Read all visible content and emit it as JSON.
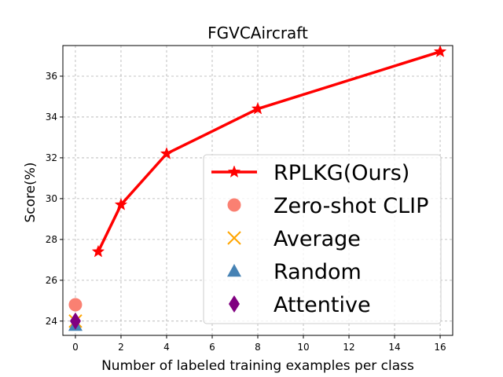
{
  "chart_data": {
    "type": "line",
    "title": "FGVCAircraft",
    "xlabel": "Number of labeled training examples per class",
    "ylabel": "Score(%)",
    "xlim": [
      -0.55,
      16.55
    ],
    "ylim": [
      23.3,
      37.5
    ],
    "xticks": [
      0,
      2,
      4,
      6,
      8,
      10,
      12,
      14,
      16
    ],
    "yticks": [
      24,
      26,
      28,
      30,
      32,
      34,
      36
    ],
    "grid": true,
    "legend_position": "lower-right",
    "series": [
      {
        "name": "RPLKG(Ours)",
        "kind": "line",
        "marker": "star",
        "color": "#ff0000",
        "x": [
          1,
          2,
          4,
          8,
          16
        ],
        "y": [
          27.4,
          29.7,
          32.2,
          34.4,
          37.2
        ]
      },
      {
        "name": "Zero-shot CLIP",
        "kind": "point",
        "marker": "circle",
        "color": "#fa8072",
        "x": [
          0
        ],
        "y": [
          24.8
        ]
      },
      {
        "name": "Average",
        "kind": "point",
        "marker": "x",
        "color": "#ffa500",
        "x": [
          0
        ],
        "y": [
          24.0
        ]
      },
      {
        "name": "Random",
        "kind": "point",
        "marker": "triangle",
        "color": "#4682b4",
        "x": [
          0
        ],
        "y": [
          23.8
        ]
      },
      {
        "name": "Attentive",
        "kind": "point",
        "marker": "diamond",
        "color": "#800080",
        "x": [
          0
        ],
        "y": [
          24.0
        ]
      }
    ]
  }
}
